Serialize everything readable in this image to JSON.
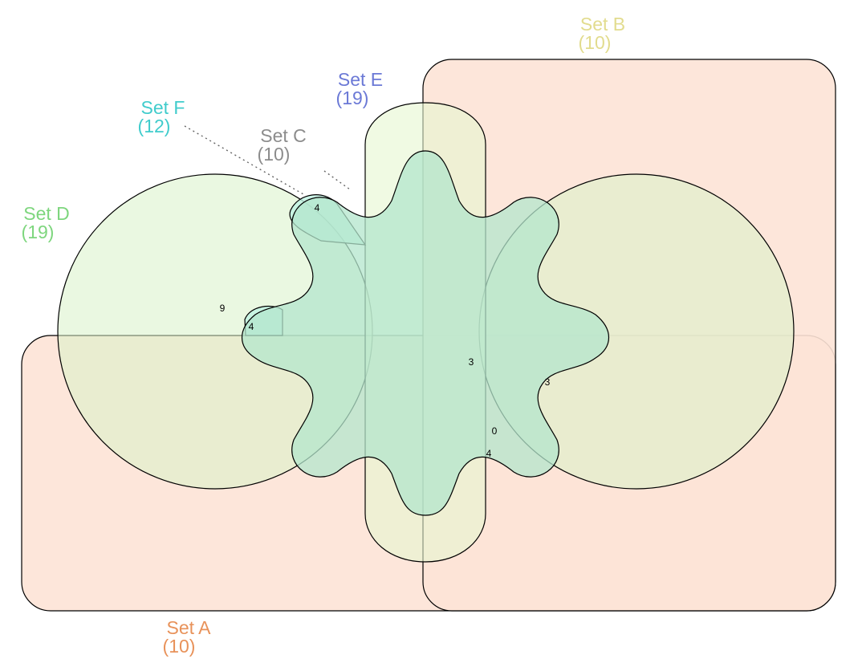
{
  "sets": {
    "a": {
      "name": "Set A",
      "count": "(10)",
      "color": "#e8925a",
      "fill": "#fde3d6"
    },
    "b": {
      "name": "Set B",
      "count": "(10)",
      "color": "#e2dc8e",
      "fill": "#fde3d6"
    },
    "c": {
      "name": "Set C",
      "count": "(10)",
      "color": "#8c8c8c",
      "fill": "#b7ddd2"
    },
    "d": {
      "name": "Set D",
      "count": "(19)",
      "color": "#7ed67e",
      "fill": "#e8fadf"
    },
    "e": {
      "name": "Set E",
      "count": "(19)",
      "color": "#6b79d6",
      "fill": "#e5f8d8"
    },
    "f": {
      "name": "Set F",
      "count": "(12)",
      "color": "#40cccc",
      "fill": "#bdf2e0"
    }
  },
  "regions": {
    "r1": "9",
    "r2": "4",
    "r3": "4",
    "r4": "3",
    "r5": "3",
    "r6": "0",
    "r7": "4"
  }
}
